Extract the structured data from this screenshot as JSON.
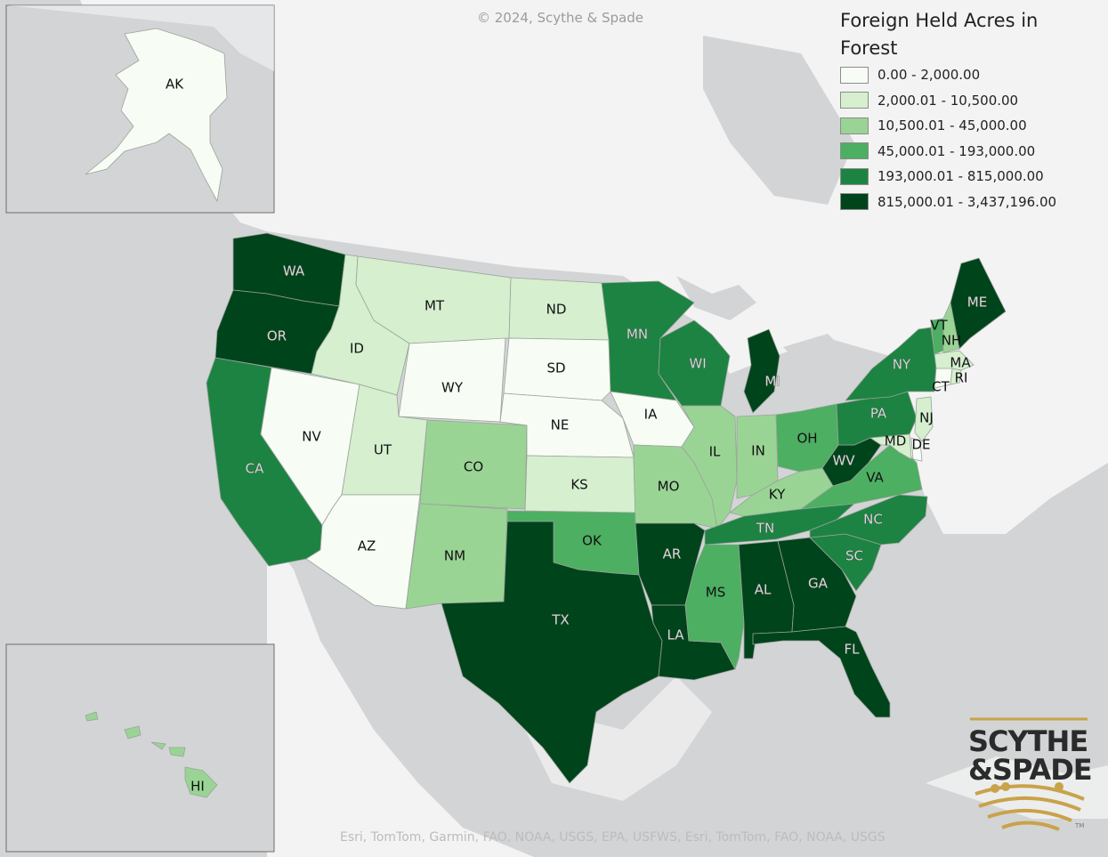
{
  "copyright": "© 2024, Scythe & Spade",
  "attribution": "Esri, TomTom, Garmin, FAO, NOAA, USGS, EPA, USFWS, Esri, TomTom, FAO, NOAA, USGS",
  "legend": {
    "title": "Foreign Held Acres in Forest",
    "classes": [
      {
        "label": "0.00 - 2,000.00",
        "color": "#f7fcf5"
      },
      {
        "label": "2,000.01 - 10,500.00",
        "color": "#d5efcf"
      },
      {
        "label": "10,500.01 - 45,000.00",
        "color": "#9ad495"
      },
      {
        "label": "45,000.01 - 193,000.00",
        "color": "#4caf62"
      },
      {
        "label": "193,000.01 - 815,000.00",
        "color": "#1d8342"
      },
      {
        "label": "815,000.01 - 3,437,196.00",
        "color": "#00441b"
      }
    ]
  },
  "logo": {
    "line1": "SCYTHE",
    "line2": "&SPADE",
    "tm": "TM",
    "gold": "#c9a24a"
  },
  "states": {
    "WA": {
      "class": 5
    },
    "OR": {
      "class": 5
    },
    "CA": {
      "class": 4
    },
    "NV": {
      "class": 0
    },
    "ID": {
      "class": 1
    },
    "MT": {
      "class": 1
    },
    "WY": {
      "class": 0
    },
    "UT": {
      "class": 1
    },
    "AZ": {
      "class": 0
    },
    "CO": {
      "class": 2
    },
    "NM": {
      "class": 2
    },
    "ND": {
      "class": 1
    },
    "SD": {
      "class": 0
    },
    "NE": {
      "class": 0
    },
    "KS": {
      "class": 1
    },
    "OK": {
      "class": 3
    },
    "TX": {
      "class": 5
    },
    "MN": {
      "class": 4
    },
    "IA": {
      "class": 0
    },
    "MO": {
      "class": 2
    },
    "AR": {
      "class": 5
    },
    "LA": {
      "class": 5
    },
    "WI": {
      "class": 4
    },
    "IL": {
      "class": 2
    },
    "MI": {
      "class": 5
    },
    "IN": {
      "class": 2
    },
    "OH": {
      "class": 3
    },
    "KY": {
      "class": 2
    },
    "TN": {
      "class": 4
    },
    "MS": {
      "class": 3
    },
    "AL": {
      "class": 5
    },
    "GA": {
      "class": 5
    },
    "FL": {
      "class": 5
    },
    "SC": {
      "class": 4
    },
    "NC": {
      "class": 4
    },
    "VA": {
      "class": 3
    },
    "WV": {
      "class": 5
    },
    "PA": {
      "class": 4
    },
    "NY": {
      "class": 4
    },
    "VT": {
      "class": 3
    },
    "NH": {
      "class": 2
    },
    "ME": {
      "class": 5
    },
    "MA": {
      "class": 1
    },
    "RI": {
      "class": 1
    },
    "CT": {
      "class": 0
    },
    "NJ": {
      "class": 1
    },
    "DE": {
      "class": 0
    },
    "MD": {
      "class": 1
    },
    "AK": {
      "class": 0
    },
    "HI": {
      "class": 2
    }
  }
}
